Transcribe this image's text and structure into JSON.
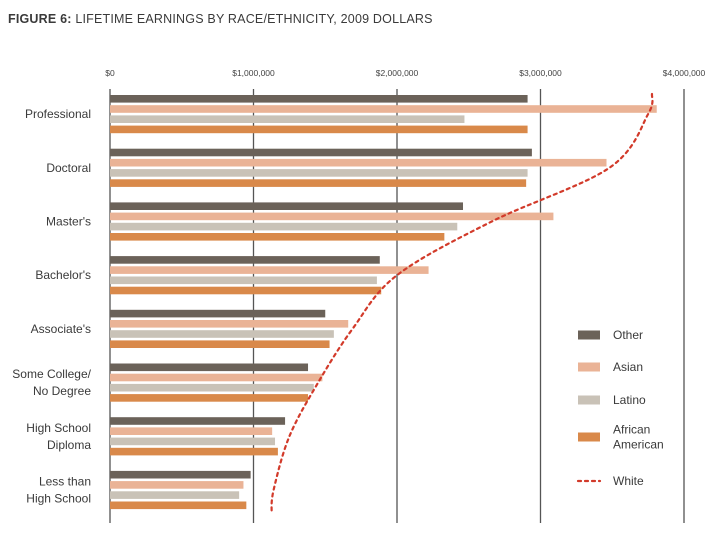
{
  "chart_data": {
    "type": "bar",
    "title_bold": "FIGURE 6:",
    "title": "LIFETIME EARNINGS BY RACE/ETHNICITY, 2009 DOLLARS",
    "orientation": "horizontal",
    "categories": [
      [
        "Professional"
      ],
      [
        "Doctoral"
      ],
      [
        "Master's"
      ],
      [
        "Bachelor's"
      ],
      [
        "Associate's"
      ],
      [
        "Some College/",
        "No Degree"
      ],
      [
        "High School",
        "Diploma"
      ],
      [
        "Less than",
        "High School"
      ]
    ],
    "x_ticks": [
      "$0",
      "$1,000,000",
      "$2,000,000",
      "$3,000,000",
      "$4,000,000"
    ],
    "xlim": [
      0,
      4000000
    ],
    "gridlines": true,
    "series": [
      {
        "name": "Other",
        "color": "#6b6259",
        "values": [
          2910000,
          2940000,
          2460000,
          1880000,
          1500000,
          1380000,
          1220000,
          980000
        ]
      },
      {
        "name": "Asian",
        "color": "#eab396",
        "values": [
          3810000,
          3460000,
          3090000,
          2220000,
          1660000,
          1480000,
          1130000,
          930000
        ]
      },
      {
        "name": "Latino",
        "color": "#c9c2b7",
        "values": [
          2470000,
          2910000,
          2420000,
          1860000,
          1560000,
          1420000,
          1150000,
          900000
        ]
      },
      {
        "name": "African American",
        "legend_lines": [
          "African",
          "American"
        ],
        "color": "#d9894a",
        "values": [
          2910000,
          2900000,
          2330000,
          1890000,
          1530000,
          1380000,
          1170000,
          950000
        ]
      }
    ],
    "line_series": {
      "name": "White",
      "style": "dotted",
      "color": "#d23a2a",
      "values": [
        3750000,
        3480000,
        2660000,
        2000000,
        1690000,
        1450000,
        1250000,
        1140000
      ]
    },
    "legend_position": "right"
  }
}
